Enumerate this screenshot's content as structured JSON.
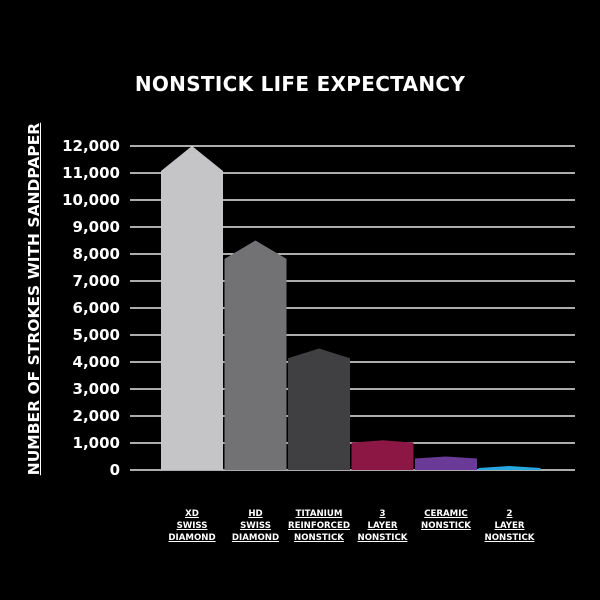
{
  "chart_data": {
    "type": "bar",
    "title": "NONSTICK LIFE EXPECTANCY",
    "ylabel": "NUMBER OF STROKES WITH SANDPAPER",
    "xlabel": "",
    "ylim": [
      0,
      12000
    ],
    "yticks": [
      "0",
      "1,000",
      "2,000",
      "3,000",
      "4,000",
      "5,000",
      "6,000",
      "7,000",
      "8,000",
      "9,000",
      "10,000",
      "11,000",
      "12,000"
    ],
    "grid": true,
    "categories": [
      [
        "XD",
        "SWISS",
        "DIAMOND"
      ],
      [
        "HD",
        "SWISS",
        "DIAMOND"
      ],
      [
        "TITANIUM",
        "REINFORCED",
        "NONSTICK"
      ],
      [
        "3",
        "LAYER",
        "NONSTICK"
      ],
      [
        "CERAMIC",
        "NONSTICK"
      ],
      [
        "2",
        "LAYER",
        "NONSTICK"
      ]
    ],
    "values": [
      12000,
      8500,
      4500,
      1100,
      500,
      150
    ],
    "colors": [
      "#c5c5c7",
      "#727275",
      "#404042",
      "#8c1745",
      "#6a3b96",
      "#27a7dd"
    ]
  }
}
